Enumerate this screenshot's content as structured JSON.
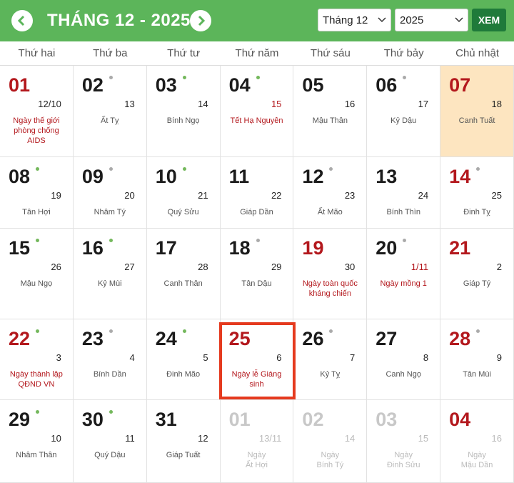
{
  "header": {
    "title": "THÁNG 12 - 2025",
    "month_select": "Tháng 12",
    "year_select": "2025",
    "button": "XEM"
  },
  "weekdays": [
    "Thứ hai",
    "Thứ ba",
    "Thứ tư",
    "Thứ năm",
    "Thứ sáu",
    "Thứ bảy",
    "Chủ nhật"
  ],
  "weeks": [
    {
      "days": [
        {
          "solar": "01",
          "solar_color": "red",
          "lunar": "12/10",
          "note": [
            "Ngày thế giới phòng chống AIDS"
          ],
          "note_color": "red"
        },
        {
          "solar": "02",
          "dot": "gray",
          "lunar": "13",
          "note": [
            "Ất Tỵ"
          ]
        },
        {
          "solar": "03",
          "dot": "green",
          "lunar": "14",
          "note": [
            "Bính Ngọ"
          ]
        },
        {
          "solar": "04",
          "dot": "green",
          "lunar": "15",
          "lunar_color": "red",
          "note": [
            "Tết Hạ Nguyên"
          ],
          "note_color": "red"
        },
        {
          "solar": "05",
          "lunar": "16",
          "note": [
            "Mậu Thân"
          ]
        },
        {
          "solar": "06",
          "dot": "gray",
          "lunar": "17",
          "note": [
            "Kỷ Dậu"
          ]
        },
        {
          "solar": "07",
          "solar_color": "red",
          "lunar": "18",
          "note": [
            "Canh Tuất"
          ],
          "highlight": "today"
        }
      ]
    },
    {
      "days": [
        {
          "solar": "08",
          "dot": "green",
          "lunar": "19",
          "note": [
            "Tân Hợi"
          ]
        },
        {
          "solar": "09",
          "dot": "gray",
          "lunar": "20",
          "note": [
            "Nhâm Tý"
          ]
        },
        {
          "solar": "10",
          "dot": "green",
          "lunar": "21",
          "note": [
            "Quý Sửu"
          ]
        },
        {
          "solar": "11",
          "lunar": "22",
          "note": [
            "Giáp Dần"
          ]
        },
        {
          "solar": "12",
          "dot": "gray",
          "lunar": "23",
          "note": [
            "Ất Mão"
          ]
        },
        {
          "solar": "13",
          "lunar": "24",
          "note": [
            "Bính Thìn"
          ]
        },
        {
          "solar": "14",
          "solar_color": "red",
          "dot": "gray",
          "lunar": "25",
          "note": [
            "Đinh Tỵ"
          ]
        }
      ]
    },
    {
      "days": [
        {
          "solar": "15",
          "dot": "green",
          "lunar": "26",
          "note": [
            "Mậu Ngọ"
          ]
        },
        {
          "solar": "16",
          "dot": "green",
          "lunar": "27",
          "note": [
            "Kỷ Mùi"
          ]
        },
        {
          "solar": "17",
          "lunar": "28",
          "note": [
            "Canh Thân"
          ]
        },
        {
          "solar": "18",
          "dot": "gray",
          "lunar": "29",
          "note": [
            "Tân Dậu"
          ]
        },
        {
          "solar": "19",
          "solar_color": "red",
          "lunar": "30",
          "note": [
            "Ngày toàn quốc kháng chiến"
          ],
          "note_color": "red"
        },
        {
          "solar": "20",
          "dot": "gray",
          "lunar": "1/11",
          "lunar_color": "red",
          "note": [
            "Ngày mồng 1"
          ],
          "note_color": "red"
        },
        {
          "solar": "21",
          "solar_color": "red",
          "lunar": "2",
          "note": [
            "Giáp Tý"
          ]
        }
      ]
    },
    {
      "days": [
        {
          "solar": "22",
          "solar_color": "red",
          "dot": "green",
          "lunar": "3",
          "note": [
            "Ngày thành lập QĐND VN"
          ],
          "note_color": "red"
        },
        {
          "solar": "23",
          "dot": "gray",
          "lunar": "4",
          "note": [
            "Bính Dần"
          ]
        },
        {
          "solar": "24",
          "dot": "green",
          "lunar": "5",
          "note": [
            "Đinh Mão"
          ]
        },
        {
          "solar": "25",
          "solar_color": "red",
          "lunar": "6",
          "note": [
            "Ngày lễ Giáng sinh"
          ],
          "note_color": "red",
          "highlight": "selected"
        },
        {
          "solar": "26",
          "dot": "gray",
          "lunar": "7",
          "note": [
            "Kỷ Tỵ"
          ]
        },
        {
          "solar": "27",
          "lunar": "8",
          "note": [
            "Canh Ngọ"
          ]
        },
        {
          "solar": "28",
          "solar_color": "red",
          "dot": "gray",
          "lunar": "9",
          "note": [
            "Tân Mùi"
          ]
        }
      ]
    },
    {
      "days": [
        {
          "solar": "29",
          "dot": "green",
          "lunar": "10",
          "note": [
            "Nhâm Thân"
          ]
        },
        {
          "solar": "30",
          "dot": "green",
          "lunar": "11",
          "note": [
            "Quý Dậu"
          ]
        },
        {
          "solar": "31",
          "lunar": "12",
          "note": [
            "Giáp Tuất"
          ]
        },
        {
          "solar": "01",
          "solar_color": "faded",
          "lunar": "13/11",
          "lunar_color": "faded",
          "note": [
            "Ngày",
            "Ất Hợi"
          ],
          "note_color": "faded"
        },
        {
          "solar": "02",
          "solar_color": "faded",
          "lunar": "14",
          "lunar_color": "faded",
          "note": [
            "Ngày",
            "Bính Tý"
          ],
          "note_color": "faded"
        },
        {
          "solar": "03",
          "solar_color": "faded",
          "lunar": "15",
          "lunar_color": "faded",
          "note": [
            "Ngày",
            "Đinh Sửu"
          ],
          "note_color": "faded"
        },
        {
          "solar": "04",
          "solar_color": "red",
          "lunar": "16",
          "lunar_color": "faded",
          "note": [
            "Ngày",
            "Mậu Dần"
          ],
          "note_color": "faded"
        }
      ]
    }
  ]
}
